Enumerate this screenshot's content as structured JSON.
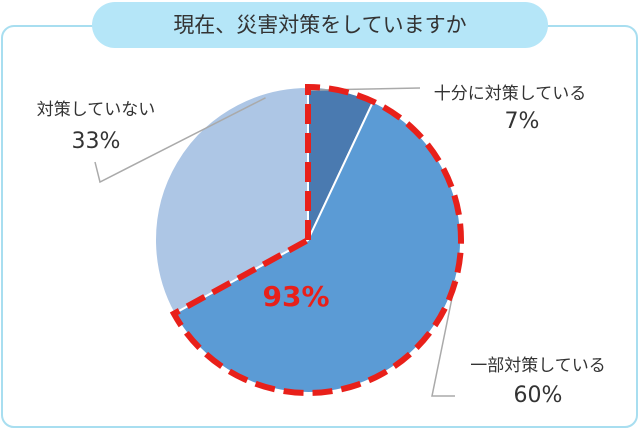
{
  "chart_data": {
    "type": "pie",
    "title": "現在、災害対策をしていますか",
    "categories": [
      "十分に対策している",
      "一部対策している",
      "対策していない"
    ],
    "values": [
      7,
      60,
      33
    ],
    "value_labels": [
      "7%",
      "60%",
      "33%"
    ],
    "colors": [
      "#4a7ab0",
      "#5b9bd5",
      "#adc6e5"
    ],
    "annotation": "93%",
    "highlight_color": "#e8201a"
  }
}
